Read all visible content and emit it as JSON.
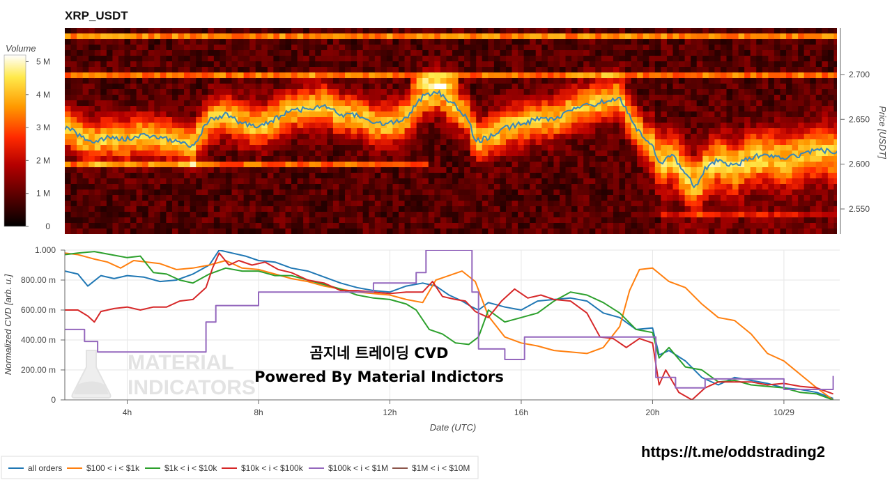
{
  "chart_data": [
    {
      "type": "heatmap",
      "title": "XRP_USDT",
      "ylabel": "Price [USDT]",
      "ylim": [
        2.522,
        2.752
      ],
      "y_ticks": [
        "2.550",
        "2.600",
        "2.650",
        "2.700"
      ],
      "y_tick_values": [
        2.55,
        2.6,
        2.65,
        2.7
      ],
      "colorbar": {
        "label": "Volume",
        "range": [
          0,
          5200000
        ],
        "ticks": [
          "0",
          "1 M",
          "2 M",
          "3 M",
          "4 M",
          "5 M"
        ],
        "tick_values": [
          0,
          1000000,
          2000000,
          3000000,
          4000000,
          5000000
        ],
        "colors": [
          "#000000",
          "#5a0000",
          "#b50000",
          "#ff2a00",
          "#ff9a00",
          "#ffe94a",
          "#ffffff"
        ]
      },
      "price_line": {
        "color": "#3a86b8",
        "x": [
          2.2,
          2.6,
          3.0,
          3.5,
          4.0,
          4.5,
          5.0,
          5.5,
          6.0,
          6.5,
          7.0,
          7.5,
          8.0,
          8.5,
          9.0,
          9.5,
          10.0,
          10.5,
          11.0,
          11.5,
          12.0,
          12.5,
          13.0,
          13.5,
          14.0,
          14.4,
          14.6,
          15.0,
          15.5,
          16.0,
          16.5,
          17.0,
          17.5,
          18.0,
          18.5,
          19.0,
          19.2,
          19.5,
          19.8,
          20.0,
          20.2,
          20.4,
          20.6,
          21.0,
          21.3,
          21.6,
          22.0,
          22.5,
          23.0,
          23.5,
          24.0,
          24.5,
          25.0,
          25.5
        ],
        "y": [
          2.64,
          2.63,
          2.625,
          2.63,
          2.628,
          2.632,
          2.63,
          2.625,
          2.62,
          2.65,
          2.655,
          2.645,
          2.642,
          2.65,
          2.66,
          2.662,
          2.665,
          2.655,
          2.655,
          2.645,
          2.645,
          2.652,
          2.675,
          2.68,
          2.665,
          2.65,
          2.625,
          2.63,
          2.64,
          2.645,
          2.65,
          2.65,
          2.66,
          2.665,
          2.67,
          2.675,
          2.66,
          2.64,
          2.625,
          2.62,
          2.6,
          2.605,
          2.61,
          2.59,
          2.575,
          2.595,
          2.605,
          2.598,
          2.608,
          2.61,
          2.606,
          2.61,
          2.616,
          2.614
        ]
      }
    },
    {
      "type": "line",
      "xlabel": "Date (UTC)",
      "ylabel": "Normalized CVD [arb. u.]",
      "x_ticks": [
        "4h",
        "8h",
        "12h",
        "16h",
        "20h",
        "10/29"
      ],
      "x_tick_values": [
        4,
        8,
        12,
        16,
        20,
        24
      ],
      "xlim": [
        2.1,
        25.7
      ],
      "ylim": [
        0,
        1
      ],
      "y_ticks": [
        "0",
        "200.00 m",
        "400.00 m",
        "600.00 m",
        "800.00 m",
        "1.000"
      ],
      "y_tick_values": [
        0,
        0.2,
        0.4,
        0.6,
        0.8,
        1.0
      ],
      "grid": true,
      "legend": "bottom",
      "series": [
        {
          "name": "all orders",
          "color": "#1f77b4",
          "x": [
            2.1,
            2.5,
            2.8,
            3.2,
            3.6,
            4.0,
            4.5,
            5.0,
            5.5,
            6.0,
            6.5,
            6.8,
            7.2,
            7.6,
            8.0,
            8.5,
            9.0,
            9.5,
            10.0,
            10.5,
            11.0,
            11.5,
            12.0,
            12.5,
            13.0,
            13.4,
            13.8,
            14.2,
            14.5,
            14.7,
            15.0,
            15.5,
            16.0,
            16.5,
            17.0,
            17.5,
            18.0,
            18.5,
            19.0,
            19.5,
            20.0,
            20.2,
            20.5,
            21.0,
            21.5,
            22.0,
            22.5,
            23.0,
            23.5,
            24.0,
            24.5,
            25.0,
            25.5
          ],
          "y": [
            0.86,
            0.84,
            0.76,
            0.83,
            0.81,
            0.83,
            0.82,
            0.79,
            0.8,
            0.84,
            0.9,
            1.0,
            0.98,
            0.96,
            0.93,
            0.92,
            0.88,
            0.86,
            0.82,
            0.78,
            0.75,
            0.73,
            0.72,
            0.76,
            0.78,
            0.76,
            0.7,
            0.66,
            0.62,
            0.6,
            0.65,
            0.62,
            0.6,
            0.66,
            0.67,
            0.68,
            0.66,
            0.58,
            0.55,
            0.47,
            0.48,
            0.3,
            0.33,
            0.26,
            0.15,
            0.1,
            0.15,
            0.13,
            0.11,
            0.08,
            0.07,
            0.05,
            0.01
          ]
        },
        {
          "name": "$100 < i < $1k",
          "color": "#ff7f0e",
          "x": [
            2.1,
            2.5,
            3.0,
            3.4,
            3.8,
            4.2,
            5.0,
            5.5,
            6.0,
            6.5,
            7.0,
            7.5,
            8.0,
            8.5,
            9.0,
            9.5,
            10.0,
            10.5,
            11.0,
            11.5,
            12.0,
            12.5,
            13.0,
            13.4,
            13.8,
            14.2,
            14.6,
            15.0,
            15.5,
            16.0,
            16.5,
            17.0,
            17.5,
            18.0,
            18.5,
            19.0,
            19.3,
            19.6,
            20.0,
            20.5,
            21.0,
            21.5,
            22.0,
            22.5,
            23.0,
            23.5,
            24.0,
            24.5,
            25.0,
            25.5
          ],
          "y": [
            0.98,
            0.97,
            0.94,
            0.92,
            0.88,
            0.93,
            0.91,
            0.87,
            0.88,
            0.9,
            0.93,
            0.88,
            0.87,
            0.84,
            0.81,
            0.79,
            0.76,
            0.74,
            0.72,
            0.71,
            0.7,
            0.67,
            0.65,
            0.8,
            0.83,
            0.86,
            0.79,
            0.56,
            0.42,
            0.38,
            0.36,
            0.33,
            0.32,
            0.31,
            0.35,
            0.49,
            0.73,
            0.87,
            0.88,
            0.79,
            0.75,
            0.64,
            0.55,
            0.53,
            0.44,
            0.31,
            0.26,
            0.17,
            0.08,
            0.0
          ]
        },
        {
          "name": "$1k < i < $10k",
          "color": "#2ca02c",
          "x": [
            2.1,
            2.5,
            3.0,
            3.5,
            4.0,
            4.4,
            4.8,
            5.2,
            5.6,
            6.0,
            6.5,
            7.0,
            7.5,
            8.0,
            8.5,
            9.0,
            9.5,
            10.0,
            10.5,
            11.0,
            11.5,
            12.0,
            12.5,
            12.8,
            13.2,
            13.6,
            14.0,
            14.4,
            14.7,
            15.0,
            15.5,
            16.0,
            16.5,
            17.0,
            17.5,
            18.0,
            18.5,
            19.0,
            19.5,
            20.0,
            20.2,
            20.5,
            21.0,
            21.5,
            22.0,
            22.5,
            23.0,
            23.5,
            24.0,
            24.5,
            25.0,
            25.5
          ],
          "y": [
            0.97,
            0.98,
            0.99,
            0.97,
            0.95,
            0.96,
            0.85,
            0.84,
            0.8,
            0.78,
            0.84,
            0.88,
            0.86,
            0.86,
            0.83,
            0.83,
            0.8,
            0.77,
            0.74,
            0.7,
            0.68,
            0.67,
            0.64,
            0.6,
            0.47,
            0.44,
            0.38,
            0.37,
            0.42,
            0.6,
            0.52,
            0.55,
            0.58,
            0.66,
            0.72,
            0.7,
            0.65,
            0.58,
            0.47,
            0.45,
            0.28,
            0.35,
            0.22,
            0.2,
            0.12,
            0.13,
            0.1,
            0.09,
            0.08,
            0.05,
            0.04,
            0.0
          ]
        },
        {
          "name": "$10k < i < $100k",
          "color": "#d62728",
          "x": [
            2.1,
            2.5,
            2.8,
            3.0,
            3.2,
            3.6,
            4.0,
            4.4,
            4.8,
            5.2,
            5.6,
            6.0,
            6.4,
            6.6,
            6.8,
            7.1,
            7.4,
            7.8,
            8.2,
            8.6,
            9.0,
            9.5,
            10.0,
            10.5,
            11.0,
            11.5,
            12.0,
            12.5,
            13.0,
            13.3,
            13.6,
            14.0,
            14.3,
            14.6,
            15.0,
            15.4,
            15.8,
            16.2,
            16.6,
            17.0,
            17.5,
            18.0,
            18.4,
            18.8,
            19.2,
            19.6,
            20.0,
            20.2,
            20.4,
            20.8,
            21.2,
            21.6,
            22.0,
            22.5,
            23.0,
            23.5,
            24.0,
            24.5,
            25.0,
            25.5
          ],
          "y": [
            0.6,
            0.6,
            0.56,
            0.52,
            0.59,
            0.61,
            0.62,
            0.6,
            0.62,
            0.62,
            0.66,
            0.67,
            0.75,
            0.88,
            0.98,
            0.9,
            0.93,
            0.9,
            0.92,
            0.87,
            0.85,
            0.8,
            0.78,
            0.73,
            0.73,
            0.72,
            0.71,
            0.72,
            0.72,
            0.79,
            0.69,
            0.67,
            0.66,
            0.59,
            0.55,
            0.66,
            0.74,
            0.68,
            0.7,
            0.67,
            0.66,
            0.58,
            0.42,
            0.41,
            0.35,
            0.41,
            0.38,
            0.1,
            0.2,
            0.05,
            0.0,
            0.08,
            0.12,
            0.12,
            0.12,
            0.1,
            0.11,
            0.09,
            0.08,
            0.04
          ]
        },
        {
          "name": "$100k < i < $1M",
          "color": "#9467bd",
          "x": [
            2.1,
            2.7,
            2.7,
            3.1,
            3.1,
            4.0,
            5.0,
            6.0,
            6.4,
            6.4,
            6.7,
            6.7,
            8.0,
            8.0,
            9.5,
            10.5,
            11.5,
            11.5,
            12.8,
            12.8,
            13.1,
            13.1,
            14.0,
            14.5,
            14.5,
            14.7,
            14.7,
            15.5,
            15.5,
            16.1,
            16.1,
            18.0,
            20.1,
            20.1,
            20.7,
            20.7,
            21.6,
            21.6,
            22.5,
            23.0,
            24.0,
            24.0,
            25.0,
            25.5,
            25.5
          ],
          "y": [
            0.47,
            0.47,
            0.39,
            0.39,
            0.32,
            0.32,
            0.32,
            0.32,
            0.32,
            0.52,
            0.52,
            0.63,
            0.63,
            0.72,
            0.72,
            0.72,
            0.72,
            0.78,
            0.78,
            0.85,
            0.85,
            1.0,
            1.0,
            1.0,
            0.72,
            0.72,
            0.34,
            0.34,
            0.27,
            0.27,
            0.42,
            0.42,
            0.42,
            0.15,
            0.15,
            0.08,
            0.08,
            0.14,
            0.14,
            0.14,
            0.14,
            0.07,
            0.07,
            0.07,
            0.16
          ]
        },
        {
          "name": "$1M < i < $10M",
          "color": "#8c564b",
          "x": [],
          "y": []
        }
      ]
    }
  ],
  "watermark": {
    "line1": "곰지네 트레이딩 CVD",
    "line2": "Powered By Material Indictors",
    "logo_line1": "MATERIAL",
    "logo_line2": "INDICATORS",
    "logo_icon": "flask-icon"
  },
  "url": "https://t.me/oddstrading2"
}
